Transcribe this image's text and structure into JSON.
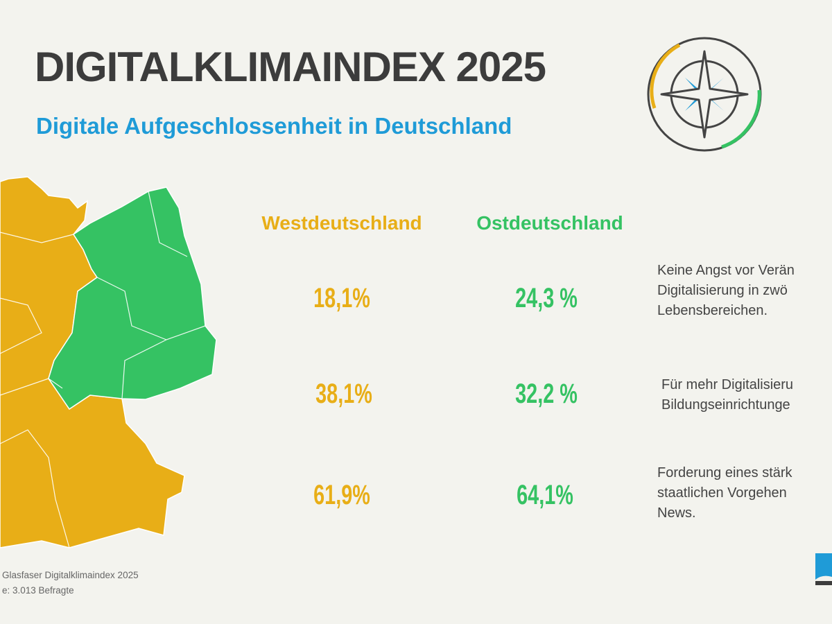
{
  "header": {
    "title": "DIGITALKLIMAINDEX 2025",
    "subtitle": "Digitale Aufgeschlossenheit in Deutschland"
  },
  "colors": {
    "west": "#e8ae17",
    "east": "#35c263",
    "accent": "#1f9bd7",
    "text": "#3c3c3c"
  },
  "chart_data": {
    "type": "table",
    "title": "Digitale Aufgeschlossenheit in Deutschland",
    "columns": [
      "Westdeutschland",
      "Ostdeutschland"
    ],
    "rows": [
      {
        "label_lines": [
          "Keine Angst vor Verän",
          "Digitalisierung in zwö",
          "Lebensbereichen."
        ],
        "west": "18,1%",
        "east": "24,3 %"
      },
      {
        "label_lines": [
          "Für mehr Digitalisieru",
          "Bildungseinrichtunge"
        ],
        "west": "38,1%",
        "east": "32,2 %"
      },
      {
        "label_lines": [
          "Forderung eines stärk",
          "staatlichen Vorgehen",
          "News."
        ],
        "west": "61,9%",
        "east": "64,1%"
      }
    ]
  },
  "footer": {
    "source_line1": "Glasfaser Digitalklimaindex 2025",
    "source_line2": "e: 3.013 Befragte"
  },
  "icons": {
    "compass": "compass-icon",
    "logo": "brand-logo"
  }
}
